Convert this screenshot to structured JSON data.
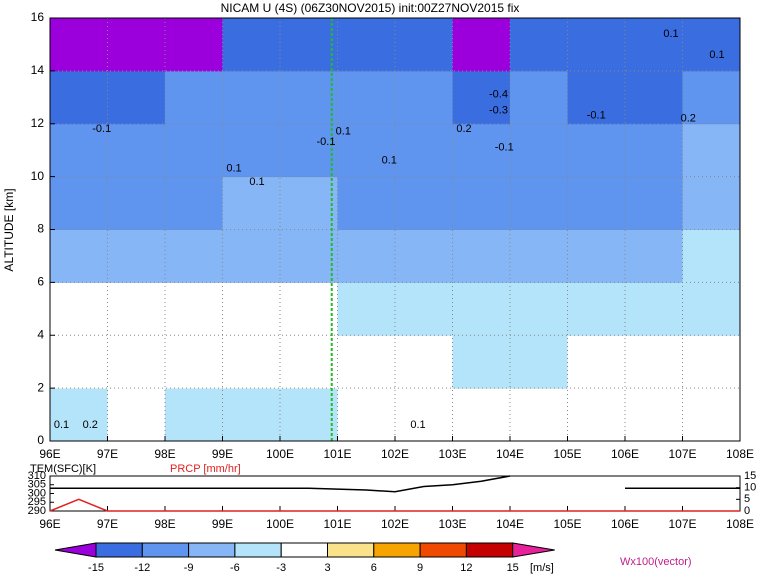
{
  "chart_data": [
    {
      "type": "heatmap",
      "title": "NICAM U (4S) (06Z30NOV2015) init:00Z27NOV2015 fix",
      "ylabel": "ALTITUDE [km]",
      "x": [
        96.5,
        97.5,
        98.5,
        99.5,
        100.5,
        101.5,
        102.5,
        103.5,
        104.5,
        105.5,
        106.5,
        107.5
      ],
      "y": [
        1,
        3,
        5,
        7,
        9,
        11,
        13,
        15
      ],
      "z": [
        [
          -4,
          -2,
          -4,
          -4,
          -4,
          -2,
          2,
          -1,
          -2,
          -2,
          -1,
          2
        ],
        [
          -1,
          -1,
          -2,
          -2,
          -1,
          -1,
          -1,
          -4,
          -4,
          -2,
          -2,
          -1
        ],
        [
          -1,
          -2,
          -2,
          -2,
          -1,
          -4,
          -4,
          -4,
          -5,
          -4,
          -4,
          -4
        ],
        [
          -7,
          -7,
          -7,
          -7,
          -7,
          -7,
          -7,
          -7,
          -7,
          -7,
          -7,
          -5
        ],
        [
          -10,
          -10,
          -10,
          -8,
          -8,
          -10,
          -10,
          -10,
          -10,
          -10,
          -10,
          -7
        ],
        [
          -10,
          -10,
          -11,
          -11,
          -10,
          -10,
          -10,
          -11,
          -10,
          -10,
          -10,
          -8
        ],
        [
          -13,
          -13,
          -12,
          -11,
          -10,
          -11,
          -11,
          -13,
          -11,
          -13,
          -13,
          -11
        ],
        [
          -16,
          -16,
          -16,
          -15,
          -14,
          -14,
          -15,
          -16,
          -13,
          -14,
          -15,
          -14
        ]
      ],
      "xlim": [
        96,
        108
      ],
      "ylim": [
        0,
        16
      ],
      "xticks": [
        {
          "value": 96,
          "label": "96E"
        },
        {
          "value": 97,
          "label": "97E"
        },
        {
          "value": 98,
          "label": "98E"
        },
        {
          "value": 99,
          "label": "99E"
        },
        {
          "value": 100,
          "label": "100E"
        },
        {
          "value": 101,
          "label": "101E"
        },
        {
          "value": 102,
          "label": "102E"
        },
        {
          "value": 103,
          "label": "103E"
        },
        {
          "value": 104,
          "label": "104E"
        },
        {
          "value": 105,
          "label": "105E"
        },
        {
          "value": 106,
          "label": "106E"
        },
        {
          "value": 107,
          "label": "107E"
        },
        {
          "value": 108,
          "label": "108E"
        }
      ],
      "yticks": [
        0,
        2,
        4,
        6,
        8,
        10,
        12,
        14,
        16
      ],
      "grid": true,
      "vline_x": 100.9,
      "vline_color": "#22bb22",
      "levels": [
        -15,
        -12,
        -9,
        -6,
        -3,
        3,
        6,
        9,
        12,
        15
      ],
      "colors": [
        "#9b00dc",
        "#3a6ee0",
        "#5f94ef",
        "#86b6f6",
        "#b4e4fa",
        "#ffffff",
        "#fae28a",
        "#f8a400",
        "#f04a00",
        "#c40000",
        "#e8209a"
      ],
      "colorbar_unit": "[m/s]",
      "vector_label": "Wx100(vector)",
      "annotations": [
        {
          "text": "-0.1",
          "x": 96.9,
          "y": 11.8
        },
        {
          "text": "0.1",
          "x": 99.2,
          "y": 10.3
        },
        {
          "text": "0.1",
          "x": 99.6,
          "y": 9.8
        },
        {
          "text": "-0.1",
          "x": 100.8,
          "y": 11.3
        },
        {
          "text": "0.1",
          "x": 101.1,
          "y": 11.7
        },
        {
          "text": "0.1",
          "x": 101.9,
          "y": 10.6
        },
        {
          "text": "0.2",
          "x": 103.2,
          "y": 11.8
        },
        {
          "text": "-0.4",
          "x": 103.8,
          "y": 13.1
        },
        {
          "text": "-0.3",
          "x": 103.8,
          "y": 12.5
        },
        {
          "text": "-0.1",
          "x": 103.9,
          "y": 11.1
        },
        {
          "text": "-0.1",
          "x": 105.5,
          "y": 12.3
        },
        {
          "text": "0.1",
          "x": 106.8,
          "y": 15.4
        },
        {
          "text": "0.1",
          "x": 107.6,
          "y": 14.6
        },
        {
          "text": "0.2",
          "x": 107.1,
          "y": 12.2
        },
        {
          "text": "0.1",
          "x": 102.4,
          "y": 0.6
        },
        {
          "text": "0.1",
          "x": 96.2,
          "y": 0.6
        },
        {
          "text": "0.2",
          "x": 96.7,
          "y": 0.6
        }
      ]
    },
    {
      "type": "line",
      "x": [
        96,
        96.5,
        97,
        97.5,
        98,
        98.5,
        99,
        99.5,
        100,
        100.5,
        101,
        101.5,
        102,
        102.5,
        103,
        103.5,
        104,
        104.5,
        105,
        105.5,
        106,
        106.5,
        107,
        107.5,
        108
      ],
      "series": [
        {
          "name": "TEM(SFC)[K]",
          "color": "#000000",
          "values": [
            303,
            303,
            303,
            303,
            303,
            303,
            303,
            303,
            303,
            303,
            302.5,
            302,
            301,
            304,
            305,
            307,
            310,
            null,
            null,
            null,
            303,
            303,
            303,
            303,
            303
          ]
        },
        {
          "name": "PRCP [mm/hr]",
          "color": "#e02020",
          "axis": "y2",
          "values": [
            0,
            5,
            0,
            0,
            0,
            0,
            0,
            0,
            0,
            0,
            0,
            0,
            0,
            0,
            0,
            0,
            0,
            0,
            0,
            0,
            0,
            0,
            0,
            0,
            0
          ]
        }
      ],
      "xlim": [
        96,
        108
      ],
      "ylim": [
        290,
        310
      ],
      "yticks": [
        290,
        295,
        300,
        305,
        310
      ],
      "y2lim": [
        0,
        15
      ],
      "y2ticks": [
        0,
        5,
        10,
        15
      ],
      "xticks": [
        {
          "value": 96,
          "label": "96E"
        },
        {
          "value": 97,
          "label": "97E"
        },
        {
          "value": 98,
          "label": "98E"
        },
        {
          "value": 99,
          "label": "99E"
        },
        {
          "value": 100,
          "label": "100E"
        },
        {
          "value": 101,
          "label": "101E"
        },
        {
          "value": 102,
          "label": "102E"
        },
        {
          "value": 103,
          "label": "103E"
        },
        {
          "value": 104,
          "label": "104E"
        },
        {
          "value": 105,
          "label": "105E"
        },
        {
          "value": 106,
          "label": "106E"
        },
        {
          "value": 107,
          "label": "107E"
        },
        {
          "value": 108,
          "label": "108E"
        }
      ]
    }
  ]
}
